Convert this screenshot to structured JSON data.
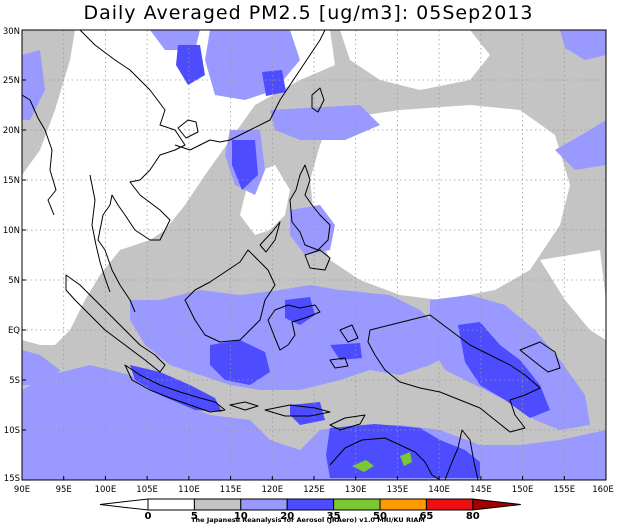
{
  "title": "Daily Averaged PM2.5 [ug/m3]: 05Sep2013",
  "map": {
    "lon_range": [
      90,
      160
    ],
    "lat_range": [
      -15,
      30
    ],
    "lon_ticks": [
      "90E",
      "95E",
      "100E",
      "105E",
      "110E",
      "115E",
      "120E",
      "125E",
      "130E",
      "135E",
      "140E",
      "145E",
      "150E",
      "155E",
      "160E"
    ],
    "lat_ticks": [
      "30N",
      "25N",
      "20N",
      "15N",
      "10N",
      "5N",
      "EQ",
      "5S",
      "10S",
      "15S"
    ],
    "grid": "dotted"
  },
  "colorbar": {
    "levels": [
      "0",
      "5",
      "10",
      "20",
      "35",
      "50",
      "65",
      "80"
    ],
    "colors": [
      "#ffffff",
      "#ffffff",
      "#c4c4c4",
      "#9999ff",
      "#4d4dff",
      "#7cc832",
      "#ff9a00",
      "#ee1010",
      "#a00000"
    ]
  },
  "credit": "The Japanese Reanalysis for Aerosol (JRAero) v1.0 MRI/KU RIAM"
}
